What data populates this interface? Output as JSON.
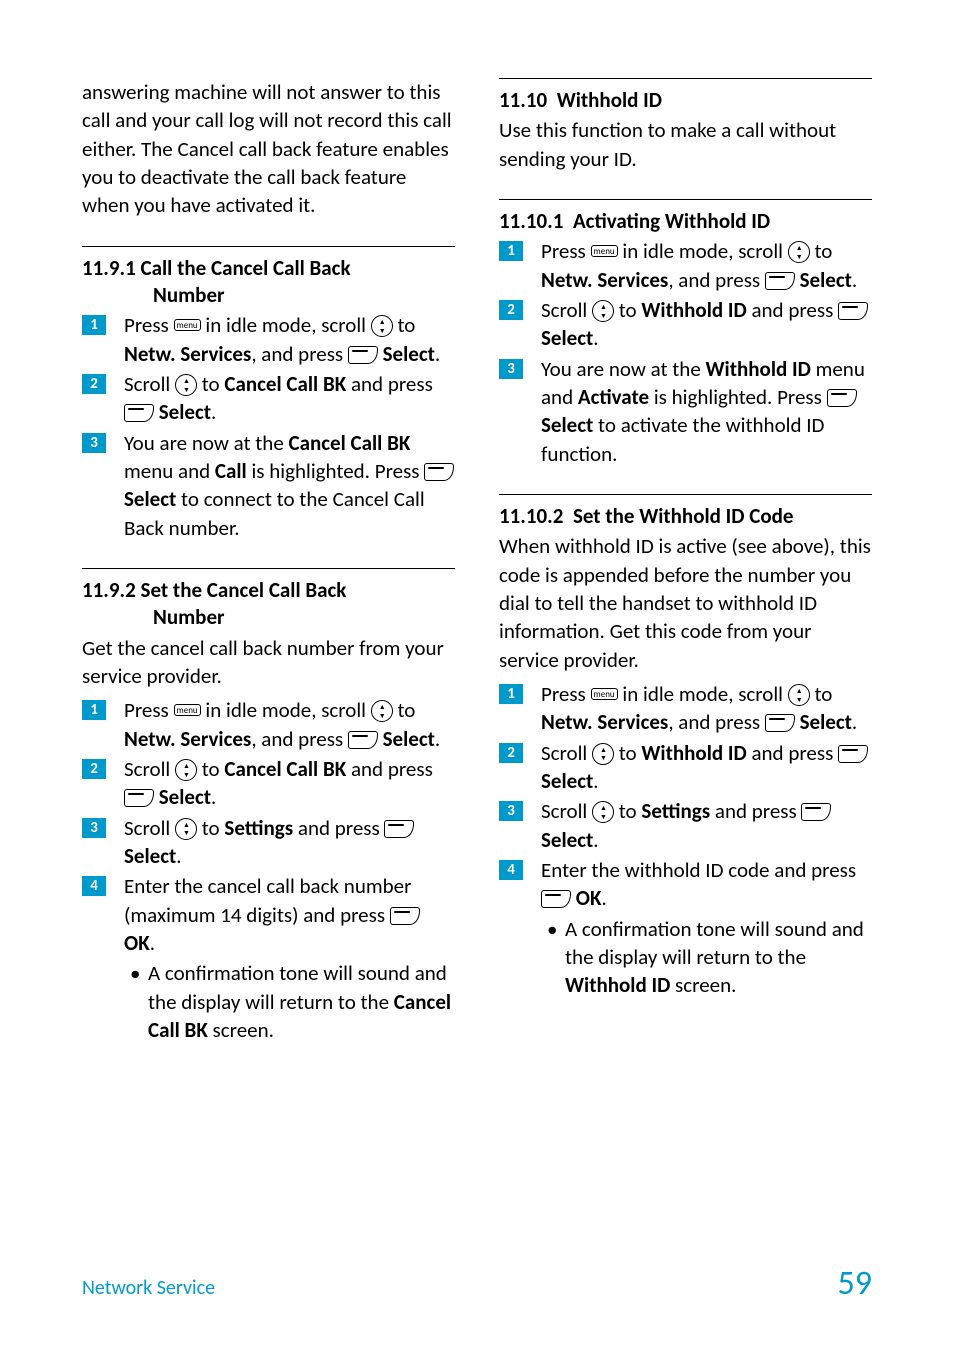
{
  "colors": {
    "accent": "#0099cc",
    "text": "#000000",
    "background": "#ffffff"
  },
  "footer": {
    "section_title": "Network Service",
    "page_number": "59"
  },
  "left": {
    "intro": "answering machine will not answer to this call and your call log will not record this call either. The Cancel call back feature enables you to deactivate the call back feature when you have activated it.",
    "s1191": {
      "num": "11.9.1",
      "title_l1": "Call the Cancel Call Back",
      "title_l2": "Number",
      "steps": {
        "s1_a": "Press ",
        "s1_b": " in idle mode, scroll ",
        "s1_c": " to ",
        "s1_bold1": "Netw. Services",
        "s1_d": ", and press ",
        "s1_bold2": "Select",
        "s1_e": ".",
        "s2_a": "Scroll ",
        "s2_b": " to ",
        "s2_bold1": "Cancel Call BK",
        "s2_c": " and press ",
        "s2_bold2": "Select",
        "s2_d": ".",
        "s3_a": "You are now at the ",
        "s3_bold1": "Cancel Call BK",
        "s3_b": " menu and ",
        "s3_bold2": "Call",
        "s3_c": " is highlighted. Press ",
        "s3_bold3": "Select",
        "s3_d": " to connect to the Cancel Call Back number."
      }
    },
    "s1192": {
      "num": "11.9.2",
      "title_l1": "Set the Cancel Call Back",
      "title_l2": "Number",
      "intro": "Get the cancel call back number from your service provider.",
      "steps": {
        "s1_a": "Press ",
        "s1_b": " in idle mode, scroll ",
        "s1_c": " to ",
        "s1_bold1": "Netw. Services",
        "s1_d": ", and press ",
        "s1_bold2": "Select",
        "s1_e": ".",
        "s2_a": "Scroll ",
        "s2_b": " to ",
        "s2_bold1": "Cancel Call BK",
        "s2_c": " and press ",
        "s2_bold2": "Select",
        "s2_d": ".",
        "s3_a": "Scroll ",
        "s3_b": " to ",
        "s3_bold1": "Settings",
        "s3_c": " and press ",
        "s3_bold2": "Select",
        "s3_d": ".",
        "s4_a": "Enter the cancel call back number (maximum 14 digits) and press ",
        "s4_bold1": "OK",
        "s4_b": ".",
        "sub_a": "A confirmation tone will sound and the display will return to the ",
        "sub_bold": "Cancel Call BK",
        "sub_b": " screen."
      }
    }
  },
  "right": {
    "s1110": {
      "num": "11.10",
      "title": "Withhold ID",
      "intro": "Use this function to make a call without sending your ID."
    },
    "s11101": {
      "num": "11.10.1",
      "title": "Activating Withhold ID",
      "steps": {
        "s1_a": "Press ",
        "s1_b": " in idle mode, scroll ",
        "s1_c": " to ",
        "s1_bold1": "Netw. Services",
        "s1_d": ", and press ",
        "s1_bold2": "Select",
        "s1_e": ".",
        "s2_a": "Scroll ",
        "s2_b": " to ",
        "s2_bold1": "Withhold ID",
        "s2_c": " and press ",
        "s2_bold2": "Select",
        "s2_d": ".",
        "s3_a": "You are now at the ",
        "s3_bold1": "Withhold ID",
        "s3_b": " menu and ",
        "s3_bold2": "Activate",
        "s3_c": " is highlighted. Press ",
        "s3_bold3": "Select",
        "s3_d": " to activate the withhold ID function."
      }
    },
    "s11102": {
      "num": "11.10.2",
      "title": "Set the Withhold ID Code",
      "intro": "When withhold ID is active (see above), this code is appended before the number you dial to tell the handset to withhold ID information. Get this code from your service provider.",
      "steps": {
        "s1_a": "Press ",
        "s1_b": " in idle mode, scroll ",
        "s1_c": " to ",
        "s1_bold1": "Netw. Services",
        "s1_d": ", and press ",
        "s1_bold2": "Select",
        "s1_e": ".",
        "s2_a": "Scroll ",
        "s2_b": " to ",
        "s2_bold1": "Withhold ID",
        "s2_c": " and press ",
        "s2_bold2": "Select",
        "s2_d": ".",
        "s3_a": "Scroll ",
        "s3_b": " to ",
        "s3_bold1": "Settings",
        "s3_c": " and press ",
        "s3_bold2": "Select",
        "s3_d": ".",
        "s4_a": "Enter the withhold ID code and press ",
        "s4_bold1": "OK",
        "s4_b": ".",
        "sub_a": "A confirmation tone will sound and the display will return to the ",
        "sub_bold": "Withhold ID",
        "sub_b": " screen."
      }
    }
  }
}
